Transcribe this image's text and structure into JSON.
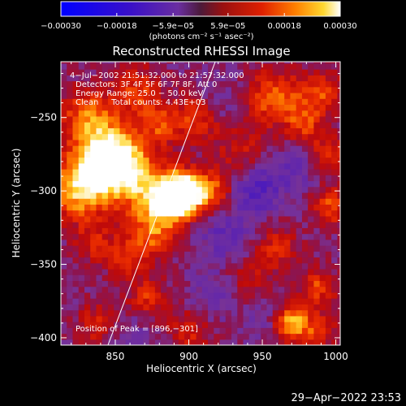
{
  "chart_data": {
    "type": "heatmap",
    "title": "Reconstructed RHESSI Image",
    "xlabel": "Heliocentric X (arcsec)",
    "ylabel": "Heliocentric Y (arcsec)",
    "xlim": [
      813,
      1003
    ],
    "ylim": [
      -405,
      -212
    ],
    "x_ticks": [
      850,
      900,
      950,
      1000
    ],
    "x_tick_labels": [
      "850",
      "900",
      "950",
      "1000"
    ],
    "y_ticks": [
      -250,
      -300,
      -350,
      -400
    ],
    "y_tick_labels": [
      "−250",
      "−300",
      "−350",
      "−400"
    ],
    "colorbar": {
      "min": -0.0003,
      "max": 0.0003,
      "ticks": [
        -0.0003,
        -0.00018,
        -5.9e-05,
        5.9e-05,
        0.00018,
        0.0003
      ],
      "tick_labels": [
        "−0.00030",
        "−0.00018",
        "−5.9e−05",
        "5.9e−05",
        "0.00018",
        "0.00030"
      ],
      "units_text": "(photons cm⁻² s⁻¹ asec⁻²)"
    },
    "annotations": [
      "4−Jul−2002 21:51:32.000 to 21:57:32.000",
      "Detectors: 3F 4F 5F 6F 7F 8F, Att 0",
      "Energy Range: 25.0 − 50.0 keV",
      "Clean     Total counts: 4.43E+03"
    ],
    "peak_label": "Position of Peak = [896,−301]",
    "peak_position": [
      896,
      -301
    ],
    "limb_line": [
      [
        845,
        -405
      ],
      [
        918,
        -212
      ]
    ],
    "hot_spots": [
      {
        "x": 896,
        "y": -301,
        "value": 0.0003,
        "sigma": 9
      },
      {
        "x": 888,
        "y": -306,
        "value": 0.00022,
        "sigma": 10
      },
      {
        "x": 876,
        "y": -303,
        "value": 0.00016,
        "sigma": 16
      },
      {
        "x": 852,
        "y": -283,
        "value": 0.00026,
        "sigma": 14
      },
      {
        "x": 840,
        "y": -270,
        "value": 0.0002,
        "sigma": 16
      },
      {
        "x": 826,
        "y": -300,
        "value": 0.00022,
        "sigma": 14
      },
      {
        "x": 865,
        "y": -232,
        "value": 0.00012,
        "sigma": 12
      },
      {
        "x": 830,
        "y": -245,
        "value": 0.00012,
        "sigma": 12
      },
      {
        "x": 880,
        "y": -255,
        "value": 0.00012,
        "sigma": 10
      },
      {
        "x": 905,
        "y": -250,
        "value": 0.00013,
        "sigma": 11
      },
      {
        "x": 915,
        "y": -300,
        "value": 0.00016,
        "sigma": 10
      },
      {
        "x": 958,
        "y": -236,
        "value": 0.00016,
        "sigma": 13
      },
      {
        "x": 990,
        "y": -233,
        "value": 0.00013,
        "sigma": 11
      },
      {
        "x": 978,
        "y": -255,
        "value": 0.00012,
        "sigma": 9
      },
      {
        "x": 995,
        "y": -275,
        "value": 0.00012,
        "sigma": 9
      },
      {
        "x": 997,
        "y": -310,
        "value": 0.00014,
        "sigma": 9
      },
      {
        "x": 960,
        "y": -338,
        "value": 0.00011,
        "sigma": 10
      },
      {
        "x": 970,
        "y": -390,
        "value": 0.00024,
        "sigma": 9
      },
      {
        "x": 988,
        "y": -365,
        "value": 0.00013,
        "sigma": 9
      },
      {
        "x": 990,
        "y": -395,
        "value": 0.00011,
        "sigma": 8
      },
      {
        "x": 876,
        "y": -330,
        "value": 0.00013,
        "sigma": 11
      },
      {
        "x": 858,
        "y": -345,
        "value": 0.00011,
        "sigma": 10
      },
      {
        "x": 872,
        "y": -372,
        "value": 0.00012,
        "sigma": 9
      },
      {
        "x": 900,
        "y": -395,
        "value": 0.0001,
        "sigma": 10
      },
      {
        "x": 838,
        "y": -390,
        "value": 0.0001,
        "sigma": 10
      },
      {
        "x": 835,
        "y": -335,
        "value": 0.0001,
        "sigma": 9
      },
      {
        "x": 935,
        "y": -270,
        "value": 8e-05,
        "sigma": 12
      },
      {
        "x": 940,
        "y": -360,
        "value": 8e-05,
        "sigma": 12
      },
      {
        "x": 925,
        "y": -330,
        "value": -8e-05,
        "sigma": 14
      },
      {
        "x": 945,
        "y": -300,
        "value": -0.00012,
        "sigma": 11
      },
      {
        "x": 970,
        "y": -285,
        "value": -8e-05,
        "sigma": 11
      },
      {
        "x": 918,
        "y": -370,
        "value": -6e-05,
        "sigma": 12
      },
      {
        "x": 955,
        "y": -385,
        "value": -6e-05,
        "sigma": 12
      },
      {
        "x": 860,
        "y": -395,
        "value": -4e-05,
        "sigma": 10
      },
      {
        "x": 920,
        "y": -240,
        "value": -5e-05,
        "sigma": 10
      }
    ],
    "grid": false,
    "legend": "none"
  },
  "footer": {
    "timestamp": "29−Apr−2022 23:53"
  }
}
